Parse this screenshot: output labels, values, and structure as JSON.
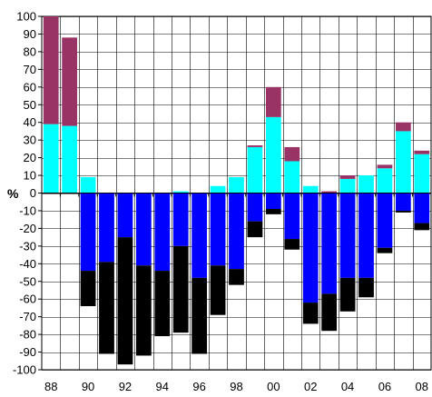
{
  "chart_data": {
    "type": "bar",
    "stacked": true,
    "ylabel": "%",
    "ylim": [
      -100,
      100
    ],
    "yticks": [
      "100",
      "90",
      "80",
      "70",
      "60",
      "50",
      "40",
      "30",
      "20",
      "10",
      "0",
      "-10",
      "-20",
      "-30",
      "-40",
      "-50",
      "-60",
      "-70",
      "-80",
      "-90",
      "-100"
    ],
    "ytick_values": [
      100,
      90,
      80,
      70,
      60,
      50,
      40,
      30,
      20,
      10,
      0,
      -10,
      -20,
      -30,
      -40,
      -50,
      -60,
      -70,
      -80,
      -90,
      -100
    ],
    "xtick_labels": [
      "88",
      "90",
      "92",
      "94",
      "96",
      "98",
      "00",
      "02",
      "04",
      "06",
      "08"
    ],
    "categories": [
      "1988",
      "1989",
      "1990",
      "1991",
      "1992",
      "1993",
      "1994",
      "1995",
      "1996",
      "1997",
      "1998",
      "1999",
      "2000",
      "2001",
      "2002",
      "2003",
      "2004",
      "2005",
      "2006",
      "2007",
      "2008"
    ],
    "grid": true,
    "legend": "none",
    "series": [
      {
        "color": "#00ffff",
        "values": [
          39,
          38,
          9,
          0,
          0,
          0,
          0,
          1,
          0,
          4,
          9,
          26,
          43,
          18,
          4,
          0,
          8,
          10,
          14,
          35,
          22
        ]
      },
      {
        "color": "#993366",
        "values": [
          61,
          50,
          0,
          0,
          0,
          0,
          0,
          0,
          0,
          0,
          0,
          1,
          17,
          8,
          0,
          1,
          2,
          0,
          2,
          5,
          2
        ]
      },
      {
        "color": "#0000ff",
        "values": [
          0,
          0,
          -44,
          -39,
          -25,
          -41,
          -44,
          -30,
          -48,
          -41,
          -43,
          -16,
          -9,
          -26,
          -62,
          -57,
          -48,
          -48,
          -31,
          -10,
          -17
        ]
      },
      {
        "color": "#000000",
        "values": [
          0,
          0,
          -20,
          -52,
          -72,
          -51,
          -37,
          -49,
          -43,
          -28,
          -9,
          -9,
          -3,
          -6,
          -12,
          -21,
          -19,
          -11,
          -3,
          -1,
          -4
        ]
      }
    ]
  }
}
